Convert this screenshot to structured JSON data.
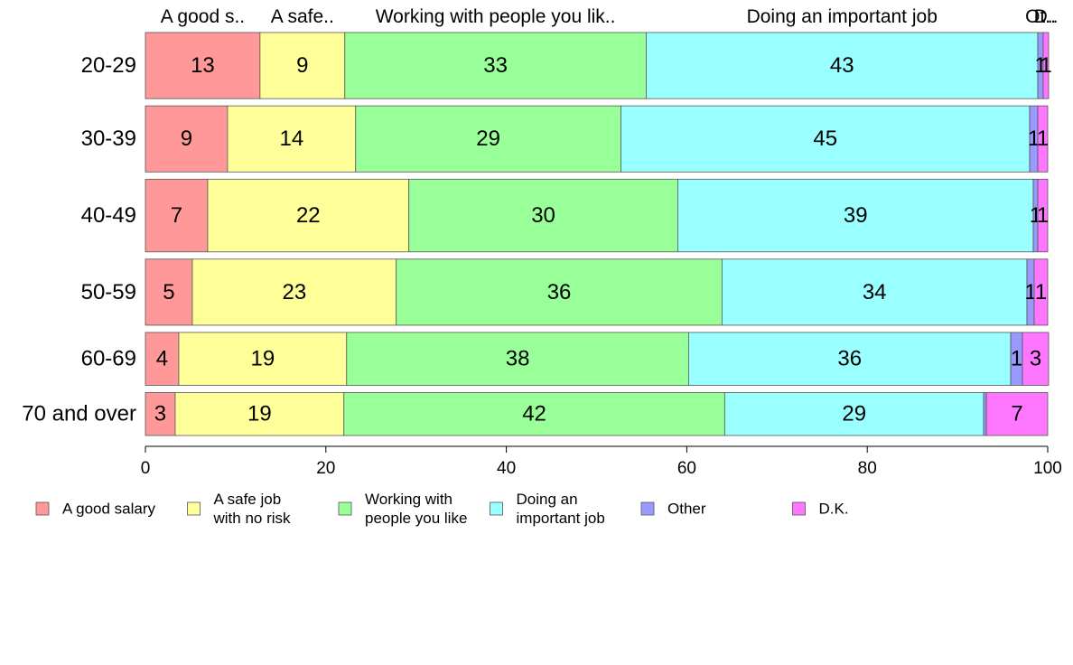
{
  "chart_data": {
    "type": "bar",
    "orientation": "horizontal",
    "stacked": true,
    "categories": [
      "20-29",
      "30-39",
      "40-49",
      "50-59",
      "60-69",
      "70 and over"
    ],
    "series": [
      {
        "name": "A good salary",
        "color": "#ff9999",
        "values": [
          12.7,
          9.1,
          6.9,
          5.2,
          3.7,
          3.3
        ]
      },
      {
        "name": "A safe job with no risk",
        "color": "#ffff99",
        "values": [
          9.4,
          14.2,
          22.3,
          22.6,
          18.6,
          18.7
        ]
      },
      {
        "name": "Working with people you like",
        "color": "#99ff99",
        "values": [
          33.4,
          29.4,
          29.8,
          36.1,
          37.9,
          42.2
        ]
      },
      {
        "name": "Doing an important job",
        "color": "#99ffff",
        "values": [
          43.4,
          45.3,
          39.4,
          33.8,
          35.7,
          28.7
        ]
      },
      {
        "name": "Other",
        "color": "#9999ff",
        "values": [
          0.6,
          0.9,
          0.5,
          0.8,
          1.3,
          0.3
        ]
      },
      {
        "name": "D.K.",
        "color": "#ff77ff",
        "values": [
          0.6,
          1.1,
          1.1,
          1.5,
          2.9,
          6.8
        ]
      }
    ],
    "segment_labels": [
      [
        "13",
        "9",
        "33",
        "43",
        "1",
        "1"
      ],
      [
        "9",
        "14",
        "29",
        "45",
        "1",
        "1"
      ],
      [
        "7",
        "22",
        "30",
        "39",
        "1",
        "1"
      ],
      [
        "5",
        "23",
        "36",
        "34",
        "1",
        "1"
      ],
      [
        "4",
        "19",
        "38",
        "36",
        "1",
        "3"
      ],
      [
        "3",
        "19",
        "42",
        "29",
        "",
        "7"
      ]
    ],
    "top_labels": [
      "A good s..",
      "A safe..",
      "Working with people you lik..",
      "Doing an important job",
      "Ot..",
      "D.."
    ],
    "legend_labels": [
      [
        "A good salary"
      ],
      [
        "A safe job",
        "with no risk"
      ],
      [
        "Working with",
        "people you like"
      ],
      [
        "Doing an",
        "important job"
      ],
      [
        "Other"
      ],
      [
        "D.K."
      ]
    ],
    "xlim": [
      0,
      100
    ],
    "xticks": [
      "0",
      "20",
      "40",
      "60",
      "80",
      "100"
    ],
    "row_weights": [
      1,
      1,
      1.1,
      1,
      0.8,
      0.65
    ],
    "legend_position": "bottom",
    "grid": false
  }
}
